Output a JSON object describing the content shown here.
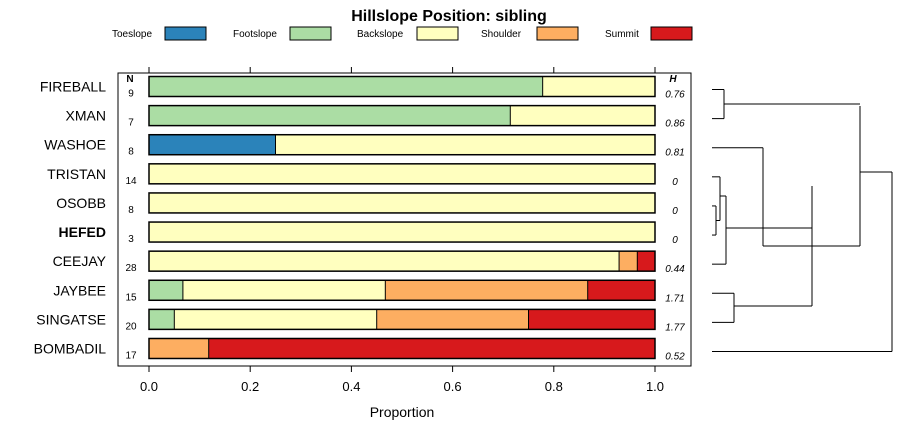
{
  "chart_data": {
    "type": "bar",
    "orientation": "horizontal",
    "stacked": true,
    "title": "Hillslope Position: sibling",
    "xlabel": "Proportion",
    "ylabel": "",
    "xlim": [
      0,
      1
    ],
    "x_ticks": [
      0,
      0.2,
      0.4,
      0.6,
      0.8,
      1
    ],
    "x_tick_labels": [
      "0.0",
      "0.2",
      "0.4",
      "0.6",
      "0.8",
      "1.0"
    ],
    "n_header": "N",
    "h_header": "H",
    "legend": [
      {
        "name": "Toeslope",
        "color": "#2B83BA"
      },
      {
        "name": "Footslope",
        "color": "#ABDDA4"
      },
      {
        "name": "Backslope",
        "color": "#FFFFBF"
      },
      {
        "name": "Shoulder",
        "color": "#FDAE61"
      },
      {
        "name": "Summit",
        "color": "#D7191C"
      }
    ],
    "categories": [
      "FIREBALL",
      "XMAN",
      "WASHOE",
      "TRISTAN",
      "OSOBB",
      "HEFED",
      "CEEJAY",
      "JAYBEE",
      "SINGATSE",
      "BOMBADIL"
    ],
    "highlighted": "HEFED",
    "n": [
      "9",
      "7",
      "8",
      "14",
      "8",
      "3",
      "28",
      "15",
      "20",
      "17"
    ],
    "h": [
      "0.76",
      "0.86",
      "0.81",
      "0",
      "0",
      "0",
      "0.44",
      "1.71",
      "1.77",
      "0.52"
    ],
    "series": [
      {
        "name": "Toeslope",
        "values": [
          0,
          0,
          0.25,
          0,
          0,
          0,
          0,
          0,
          0,
          0
        ]
      },
      {
        "name": "Footslope",
        "values": [
          0.778,
          0.714,
          0,
          0,
          0,
          0,
          0,
          0.067,
          0.05,
          0
        ]
      },
      {
        "name": "Backslope",
        "values": [
          0.222,
          0.286,
          0.75,
          1,
          1,
          1,
          0.929,
          0.4,
          0.4,
          0
        ]
      },
      {
        "name": "Shoulder",
        "values": [
          0,
          0,
          0,
          0,
          0,
          0,
          0.036,
          0.4,
          0.3,
          0.118
        ]
      },
      {
        "name": "Summit",
        "values": [
          0,
          0,
          0,
          0,
          0,
          0,
          0.036,
          0.133,
          0.25,
          0.882
        ]
      }
    ],
    "dendrogram": {
      "merges": [
        [
          "OSOBB",
          "HEFED",
          0.02
        ],
        [
          "TRISTAN",
          "OSOBB+HEFED",
          0.06
        ],
        [
          "JAYBEE",
          "SINGATSE",
          0.12
        ],
        [
          "FIREBALL",
          "XMAN",
          0.1
        ],
        [
          "FIREBALL+XMAN",
          "WASHOE",
          0.85
        ],
        [
          "TRISTAN+OSOBB+HEFED",
          "CEEJAY",
          0.07
        ],
        [
          "JAYBEE+SINGATSE",
          "TRISTAN+OSOBB+HEFED+CEEJAY",
          0.76
        ],
        [
          "FIREBALL+XMAN+WASHOE",
          "REST",
          0.8
        ],
        [
          "ALL",
          "BOMBADIL",
          1.0
        ]
      ]
    }
  }
}
